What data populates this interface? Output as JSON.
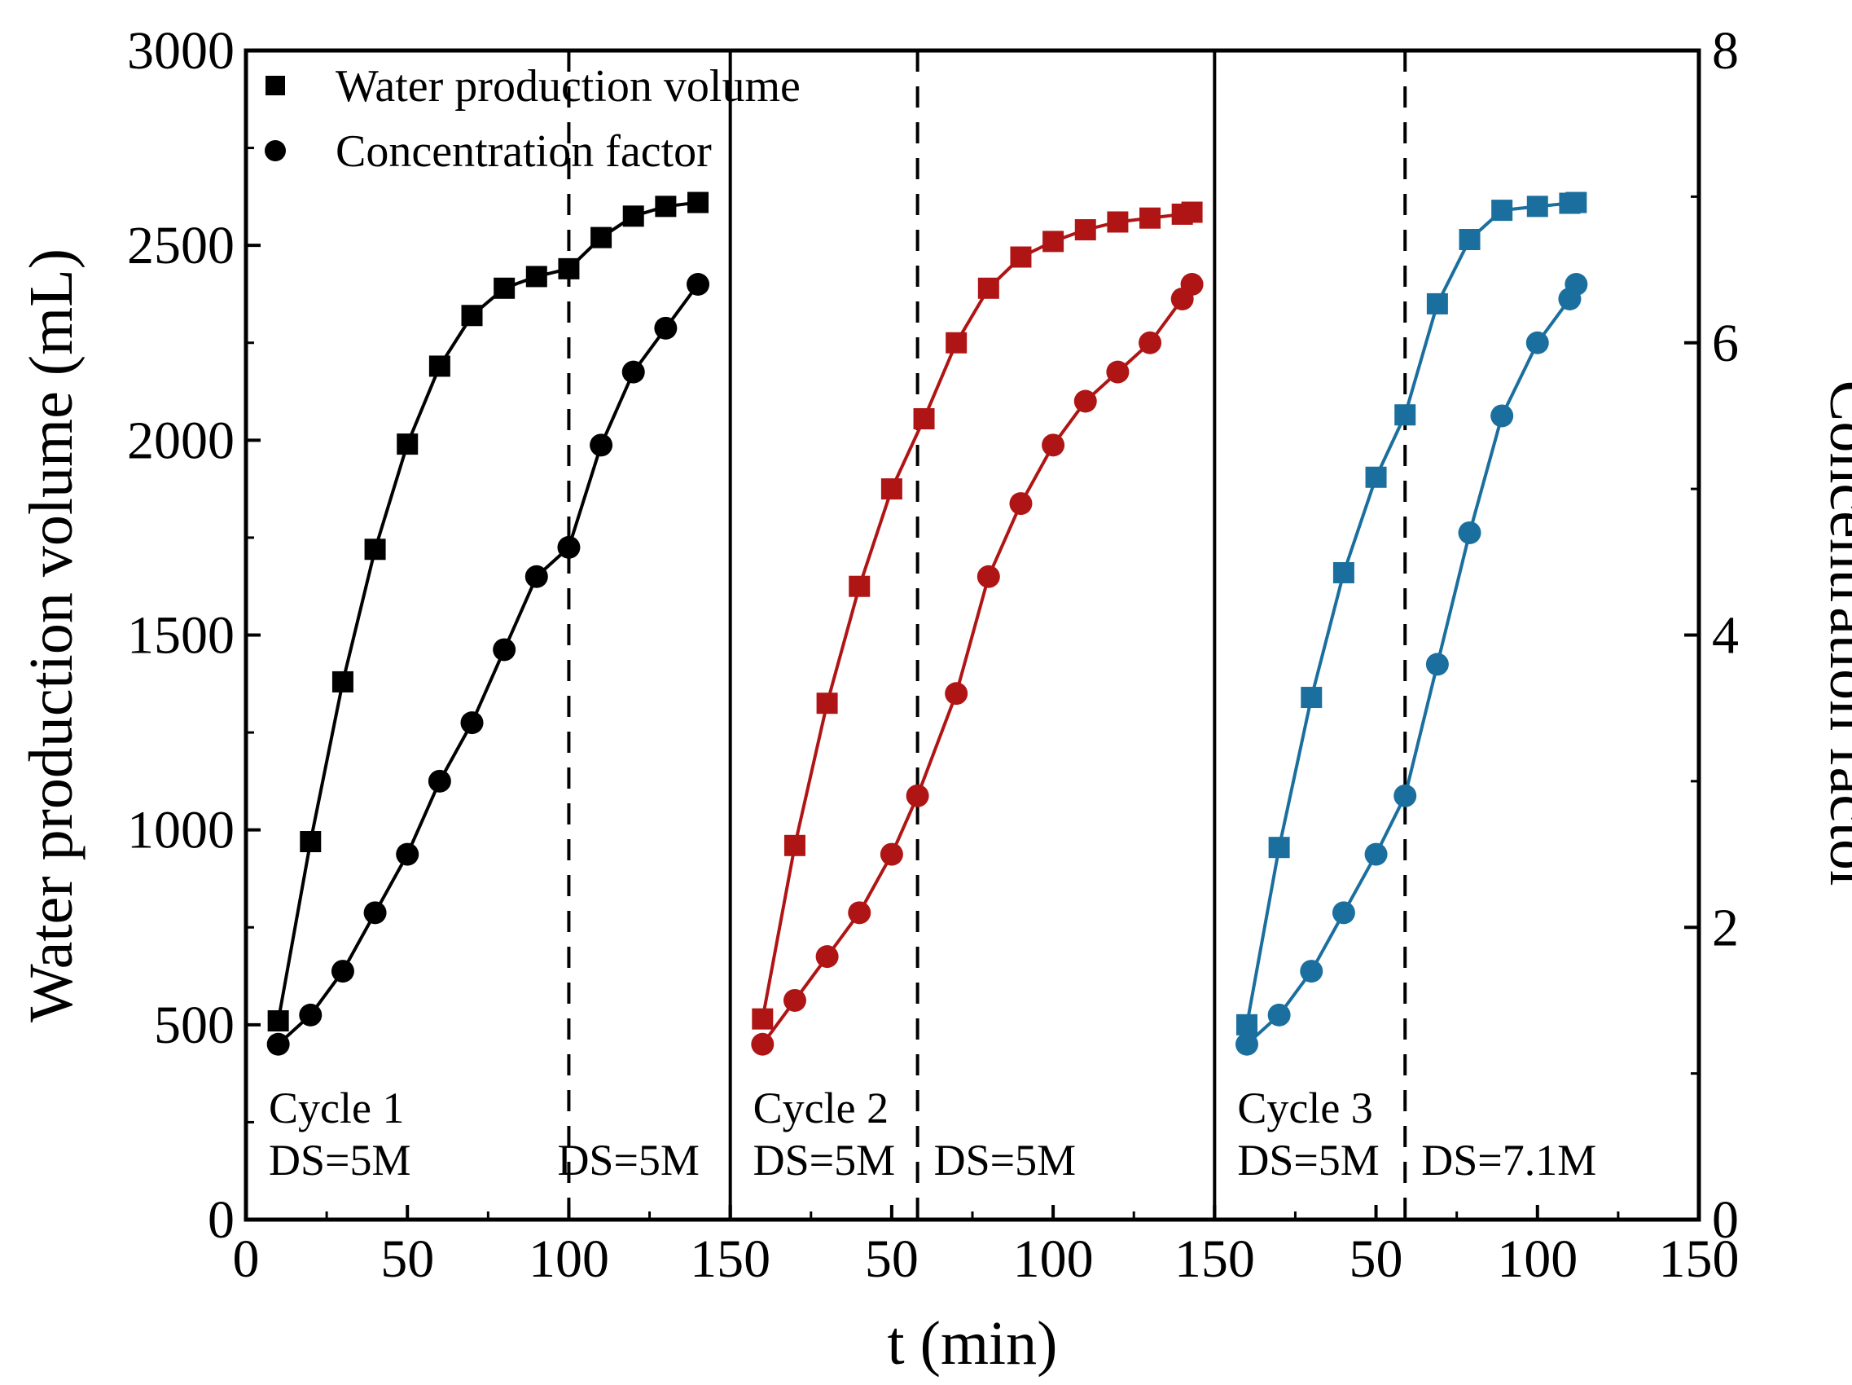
{
  "chart_data": {
    "type": "scatter",
    "xlabel": "t (min)",
    "ylabel": "Water production volume (mL)",
    "y2label": "Concentration factor",
    "ylim": [
      0,
      3000
    ],
    "y2lim": [
      0,
      8
    ],
    "yticks": [
      "0",
      "500",
      "1000",
      "1500",
      "2000",
      "2500",
      "3000"
    ],
    "y2ticks": [
      "0",
      "2",
      "4",
      "6",
      "8"
    ],
    "legend": {
      "position": "top-left",
      "entries": [
        {
          "name": "Water production volume",
          "marker": "square"
        },
        {
          "name": "Concentration factor",
          "marker": "circle"
        }
      ]
    },
    "panels": [
      {
        "color": "#000000",
        "xlim": [
          0,
          150
        ],
        "xticks": [
          "0",
          "50",
          "100",
          "150"
        ],
        "divider_x": 100,
        "cycle_label": "Cycle 1",
        "ds_left": "DS=5M",
        "ds_right": "DS=5M",
        "water": {
          "x": [
            10,
            20,
            30,
            40,
            50,
            60,
            70,
            80,
            90,
            100,
            110,
            120,
            130,
            140
          ],
          "y": [
            510,
            970,
            1380,
            1720,
            1990,
            2190,
            2320,
            2390,
            2420,
            2440,
            2520,
            2575,
            2600,
            2610
          ]
        },
        "concentration": {
          "x": [
            10,
            20,
            30,
            40,
            50,
            60,
            70,
            80,
            90,
            100,
            110,
            120,
            130,
            140
          ],
          "y": [
            1.2,
            1.4,
            1.7,
            2.1,
            2.5,
            3.0,
            3.4,
            3.9,
            4.4,
            4.6,
            5.3,
            5.8,
            6.1,
            6.4
          ]
        }
      },
      {
        "color": "#b01515",
        "xlim": [
          0,
          150
        ],
        "xticks": [
          "",
          "50",
          "100",
          "150"
        ],
        "divider_x": 58,
        "cycle_label": "Cycle 2",
        "ds_left": "DS=5M",
        "ds_right": "DS=5M",
        "water": {
          "x": [
            10,
            20,
            30,
            40,
            50,
            60,
            70,
            80,
            90,
            100,
            110,
            120,
            130,
            140,
            143
          ],
          "y": [
            515,
            960,
            1325,
            1625,
            1875,
            2055,
            2250,
            2390,
            2470,
            2510,
            2540,
            2560,
            2570,
            2580,
            2585
          ]
        },
        "concentration": {
          "x": [
            10,
            20,
            30,
            40,
            50,
            58,
            70,
            80,
            90,
            100,
            110,
            120,
            130,
            140,
            143
          ],
          "y": [
            1.2,
            1.5,
            1.8,
            2.1,
            2.5,
            2.9,
            3.6,
            4.4,
            4.9,
            5.3,
            5.6,
            5.8,
            6.0,
            6.3,
            6.4
          ]
        }
      },
      {
        "color": "#1a6f9e",
        "xlim": [
          0,
          150
        ],
        "xticks": [
          "",
          "50",
          "100",
          "150"
        ],
        "divider_x": 59,
        "cycle_label": "Cycle 3",
        "ds_left": "DS=5M",
        "ds_right": "DS=7.1M",
        "water": {
          "x": [
            10,
            20,
            30,
            40,
            50,
            59,
            69,
            79,
            89,
            100,
            110,
            112
          ],
          "y": [
            500,
            955,
            1340,
            1660,
            1905,
            2065,
            2350,
            2515,
            2590,
            2600,
            2608,
            2610
          ]
        },
        "concentration": {
          "x": [
            10,
            20,
            30,
            40,
            50,
            59,
            69,
            79,
            89,
            100,
            110,
            112
          ],
          "y": [
            1.2,
            1.4,
            1.7,
            2.1,
            2.5,
            2.9,
            3.8,
            4.7,
            5.5,
            6.0,
            6.3,
            6.4
          ]
        }
      }
    ]
  }
}
